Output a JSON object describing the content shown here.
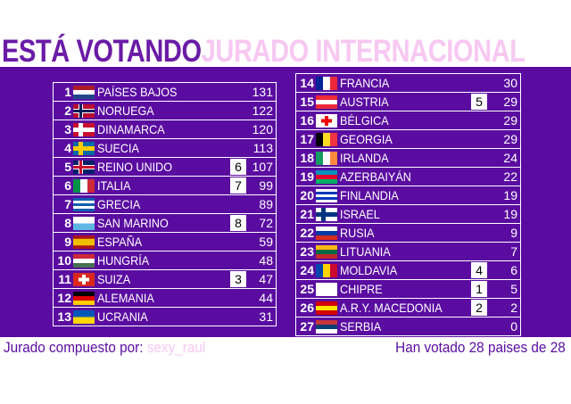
{
  "header": {
    "title_left": "ESTÁ VOTANDO",
    "title_right": "JURADO INTERNACIONAL"
  },
  "left_table": {
    "rows": [
      {
        "rank": 1,
        "country": "PAÍSES BAJOS",
        "total": 131
      },
      {
        "rank": 2,
        "country": "NORUEGA",
        "total": 122
      },
      {
        "rank": 3,
        "country": "DINAMARCA",
        "total": 120
      },
      {
        "rank": 4,
        "country": "SUECIA",
        "total": 113
      },
      {
        "rank": 5,
        "country": "REINO UNIDO",
        "points": 6,
        "total": 107
      },
      {
        "rank": 6,
        "country": "ITALIA",
        "points": 7,
        "total": 99
      },
      {
        "rank": 7,
        "country": "GRECIA",
        "total": 89
      },
      {
        "rank": 8,
        "country": "SAN MARINO",
        "points": 8,
        "total": 72
      },
      {
        "rank": 9,
        "country": "ESPAÑA",
        "total": 59
      },
      {
        "rank": 10,
        "country": "HUNGRÍA",
        "total": 48
      },
      {
        "rank": 11,
        "country": "SUIZA",
        "points": 3,
        "total": 47
      },
      {
        "rank": 12,
        "country": "ALEMANIA",
        "total": 44
      },
      {
        "rank": 13,
        "country": "UCRANIA",
        "total": 31
      }
    ]
  },
  "right_table": {
    "rows": [
      {
        "rank": 14,
        "country": "FRANCIA",
        "total": 30
      },
      {
        "rank": 15,
        "country": "AUSTRIA",
        "points": 5,
        "total": 29
      },
      {
        "rank": 16,
        "country": "BÉLGICA",
        "total": 29
      },
      {
        "rank": 17,
        "country": "GEORGIA",
        "total": 29
      },
      {
        "rank": 18,
        "country": "IRLANDA",
        "total": 24
      },
      {
        "rank": 19,
        "country": "AZERBAIYÁN",
        "total": 22
      },
      {
        "rank": 20,
        "country": "FINLANDIA",
        "total": 19
      },
      {
        "rank": 21,
        "country": "ISRAEL",
        "total": 19
      },
      {
        "rank": 22,
        "country": "RUSIA",
        "total": 9
      },
      {
        "rank": 23,
        "country": "LITUANIA",
        "total": 7
      },
      {
        "rank": 24,
        "country": "MOLDAVIA",
        "points": 4,
        "total": 6
      },
      {
        "rank": 25,
        "country": "CHIPRE",
        "points": 1,
        "total": 5
      },
      {
        "rank": 26,
        "country": "A.R.Y. MACEDONIA",
        "points": 2,
        "total": 2
      },
      {
        "rank": 27,
        "country": "SERBIA",
        "total": 0
      }
    ]
  },
  "footer": {
    "jury_label": "Jurado compuesto por:",
    "jury_name": "sexy_raul",
    "votes_status": "Han votado 28 paises de 28"
  }
}
